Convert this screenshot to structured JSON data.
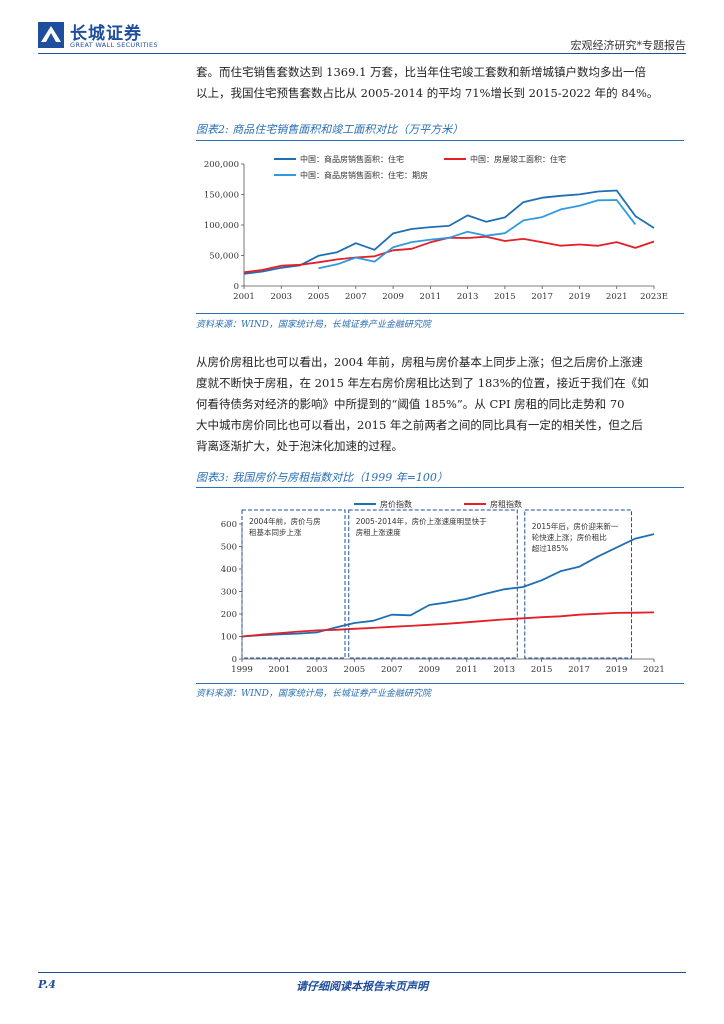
{
  "header": {
    "logo_cn": "长城证券",
    "logo_en": "GREAT WALL SECURITIES",
    "report_type": "宏观经济研究*专题报告"
  },
  "paragraphs": {
    "p1_line1": "套。而住宅销售套数达到 1369.1 万套，比当年住宅竣工套数和新增城镇户数均多出一倍",
    "p1_line2": "以上，我国住宅预售套数占比从 2005-2014 的平均 71%增长到 2015-2022 年的 84%。",
    "p2_lines": [
      "从房价房租比也可以看出，2004 年前，房租与房价基本上同步上涨；但之后房价上涨速",
      "度就不断快于房租，在 2015 年左右房价房租比达到了 183%的位置，接近于我们在《如",
      "何看待债务对经济的影响》中所提到的“阈值 185%”。从 CPI 房租的同比走势和 70",
      "大中城市房价同比也可以看出，2015 年之前两者之间的同比具有一定的相关性，但之后",
      "背离逐渐扩大，处于泡沫化加速的过程。"
    ]
  },
  "figure2": {
    "title": "图表2: 商品住宅销售面积和竣工面积对比（万平方米）",
    "source": "资料来源：WIND，国家统计局，长城证券产业金融研究院"
  },
  "figure3": {
    "title": "图表3: 我国房价与房租指数对比（1999 年=100）",
    "source": "资料来源：WIND，国家统计局，长城证券产业金融研究院"
  },
  "footer": {
    "page": "P.4",
    "disclaimer": "请仔细阅读本报告末页声明"
  },
  "chart_data": [
    {
      "type": "line",
      "title": "",
      "xlabel": "",
      "ylabel": "",
      "x": [
        "2001",
        "2002",
        "2003",
        "2004",
        "2005",
        "2006",
        "2007",
        "2008",
        "2009",
        "2010",
        "2011",
        "2012",
        "2013",
        "2014",
        "2015",
        "2016",
        "2017",
        "2018",
        "2019",
        "2020",
        "2021",
        "2022",
        "2023E"
      ],
      "x_tick_labels": [
        "2001",
        "2003",
        "2005",
        "2007",
        "2009",
        "2011",
        "2013",
        "2015",
        "2017",
        "2019",
        "2021",
        "2023E"
      ],
      "y_ticks": [
        "0",
        "50,000",
        "100,000",
        "150,000",
        "200,000"
      ],
      "ylim": [
        0,
        200000
      ],
      "legend_position": "top",
      "series": [
        {
          "name": "中国：商品房销售面积：住宅",
          "color": "#1f6fb5",
          "values": [
            19939,
            23702,
            29779,
            33820,
            49588,
            55423,
            70136,
            59280,
            86185,
            93377,
            96528,
            98468,
            115723,
            105188,
            112406,
            137540,
            144789,
            147929,
            150144,
            154878,
            156532,
            114631,
            95000
          ]
        },
        {
          "name": "中国：房屋竣工面积：住宅",
          "color": "#e41f26",
          "values": [
            22410,
            26390,
            33278,
            34755,
            38850,
            43590,
            46700,
            48700,
            58500,
            61000,
            71700,
            79000,
            78700,
            80900,
            73800,
            77200,
            71800,
            66000,
            68000,
            65900,
            72000,
            62500,
            73000
          ]
        },
        {
          "name": "中国：商品房销售面积：住宅：期房",
          "color": "#2e9ae0",
          "values": [
            null,
            null,
            null,
            null,
            29000,
            35500,
            46500,
            40000,
            63500,
            72000,
            76000,
            79000,
            89000,
            82500,
            86500,
            107500,
            113000,
            125500,
            131500,
            140500,
            141000,
            101000,
            null
          ]
        }
      ]
    },
    {
      "type": "line",
      "title": "",
      "xlabel": "",
      "ylabel": "",
      "x": [
        "1999",
        "2000",
        "2001",
        "2002",
        "2003",
        "2004",
        "2005",
        "2006",
        "2007",
        "2008",
        "2009",
        "2010",
        "2011",
        "2012",
        "2013",
        "2014",
        "2015",
        "2016",
        "2017",
        "2018",
        "2019",
        "2020",
        "2021"
      ],
      "x_tick_labels": [
        "1999",
        "2001",
        "2003",
        "2005",
        "2007",
        "2009",
        "2011",
        "2013",
        "2015",
        "2017",
        "2019",
        "2021"
      ],
      "y_ticks": [
        "0",
        "100",
        "200",
        "300",
        "400",
        "500",
        "600"
      ],
      "ylim": [
        0,
        600
      ],
      "legend_position": "top",
      "series": [
        {
          "name": "房价指数",
          "color": "#1f6fb5",
          "values": [
            100,
            106,
            110,
            113,
            118,
            140,
            160,
            170,
            197,
            194,
            240,
            252,
            267,
            290,
            310,
            320,
            350,
            390,
            410,
            455,
            495,
            535,
            555
          ]
        },
        {
          "name": "房租指数",
          "color": "#e41f26",
          "values": [
            100,
            108,
            115,
            122,
            127,
            130,
            134,
            138,
            143,
            147,
            152,
            157,
            163,
            170,
            176,
            181,
            186,
            190,
            197,
            201,
            205,
            206,
            207
          ]
        }
      ],
      "annotations": [
        {
          "lines": [
            "2004年前，房价与房",
            "租基本同步上涨"
          ]
        },
        {
          "lines": [
            "2005-2014年，房价上涨速度明显快于",
            "房租上涨速度"
          ]
        },
        {
          "lines": [
            "2015年后，房价迎来新一",
            "轮快速上涨；房价租比",
            "超过185%"
          ]
        }
      ]
    }
  ]
}
